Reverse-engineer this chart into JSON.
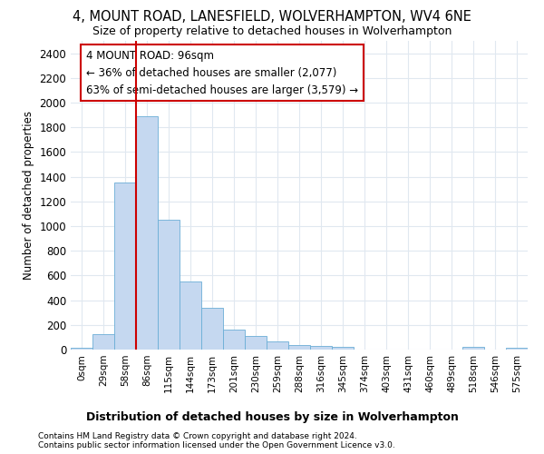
{
  "title": "4, MOUNT ROAD, LANESFIELD, WOLVERHAMPTON, WV4 6NE",
  "subtitle": "Size of property relative to detached houses in Wolverhampton",
  "xlabel": "Distribution of detached houses by size in Wolverhampton",
  "ylabel": "Number of detached properties",
  "bar_values": [
    15,
    125,
    1350,
    1890,
    1050,
    550,
    335,
    160,
    110,
    65,
    40,
    30,
    20,
    0,
    0,
    0,
    0,
    0,
    20,
    0,
    15
  ],
  "bin_labels": [
    "0sqm",
    "29sqm",
    "58sqm",
    "86sqm",
    "115sqm",
    "144sqm",
    "173sqm",
    "201sqm",
    "230sqm",
    "259sqm",
    "288sqm",
    "316sqm",
    "345sqm",
    "374sqm",
    "403sqm",
    "431sqm",
    "460sqm",
    "489sqm",
    "518sqm",
    "546sqm",
    "575sqm"
  ],
  "bar_color": "#c5d8f0",
  "bar_edge_color": "#6baed6",
  "vline_x": 3,
  "vline_color": "#cc0000",
  "annotation_title": "4 MOUNT ROAD: 96sqm",
  "annotation_line1": "← 36% of detached houses are smaller (2,077)",
  "annotation_line2": "63% of semi-detached houses are larger (3,579) →",
  "annotation_box_facecolor": "#ffffff",
  "annotation_box_edgecolor": "#cc0000",
  "ylim": [
    0,
    2500
  ],
  "yticks": [
    0,
    200,
    400,
    600,
    800,
    1000,
    1200,
    1400,
    1600,
    1800,
    2000,
    2200,
    2400
  ],
  "footer_line1": "Contains HM Land Registry data © Crown copyright and database right 2024.",
  "footer_line2": "Contains public sector information licensed under the Open Government Licence v3.0.",
  "bg_color": "#ffffff",
  "plot_bg_color": "#ffffff",
  "grid_color": "#e0e8f0"
}
